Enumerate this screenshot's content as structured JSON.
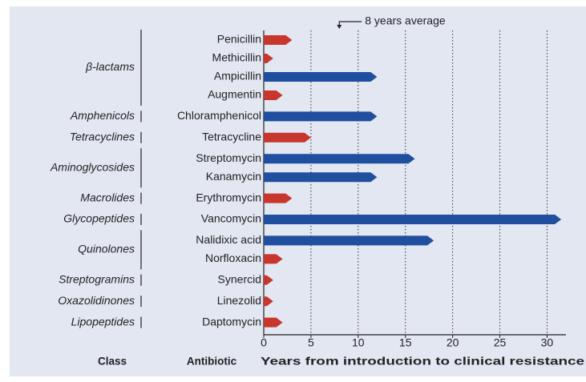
{
  "chart_data": {
    "type": "bar",
    "orientation": "horizontal",
    "groups": [
      {
        "class": "β-lactams",
        "categories": [
          "Penicillin",
          "Methicillin",
          "Ampicillin",
          "Augmentin"
        ],
        "values": [
          3,
          1,
          12,
          2
        ],
        "colors": [
          "#c8372d",
          "#c8372d",
          "#1f4f9e",
          "#c8372d"
        ]
      },
      {
        "class": "Amphenicols",
        "categories": [
          "Chloramphenicol"
        ],
        "values": [
          12
        ],
        "colors": [
          "#1f4f9e"
        ]
      },
      {
        "class": "Tetracyclines",
        "categories": [
          "Tetracycline"
        ],
        "values": [
          5
        ],
        "colors": [
          "#c8372d"
        ]
      },
      {
        "class": "Aminoglycosides",
        "categories": [
          "Streptomycin",
          "Kanamycin"
        ],
        "values": [
          16,
          12
        ],
        "colors": [
          "#1f4f9e",
          "#1f4f9e"
        ]
      },
      {
        "class": "Macrolides",
        "categories": [
          "Erythromycin"
        ],
        "values": [
          3
        ],
        "colors": [
          "#c8372d"
        ]
      },
      {
        "class": "Glycopeptides",
        "categories": [
          "Vancomycin"
        ],
        "values": [
          31.5
        ],
        "colors": [
          "#1f4f9e"
        ]
      },
      {
        "class": "Quinolones",
        "categories": [
          "Nalidixic acid",
          "Norfloxacin"
        ],
        "values": [
          18,
          2
        ],
        "colors": [
          "#1f4f9e",
          "#c8372d"
        ]
      },
      {
        "class": "Streptogramins",
        "categories": [
          "Synercid"
        ],
        "values": [
          1
        ],
        "colors": [
          "#c8372d"
        ]
      },
      {
        "class": "Oxazolidinones",
        "categories": [
          "Linezolid"
        ],
        "values": [
          1
        ],
        "colors": [
          "#c8372d"
        ]
      },
      {
        "class": "Lipopeptides",
        "categories": [
          "Daptomycin"
        ],
        "values": [
          2
        ],
        "colors": [
          "#c8372d"
        ]
      }
    ],
    "xlim": [
      0,
      32
    ],
    "xticks": [
      0,
      5,
      10,
      15,
      20,
      25,
      30
    ],
    "grid": true,
    "average": 8,
    "annotation": "8 years average",
    "class_label": "Class",
    "category_label": "Antibiotic",
    "xlabel": "Years from introduction to clinical resistance"
  }
}
